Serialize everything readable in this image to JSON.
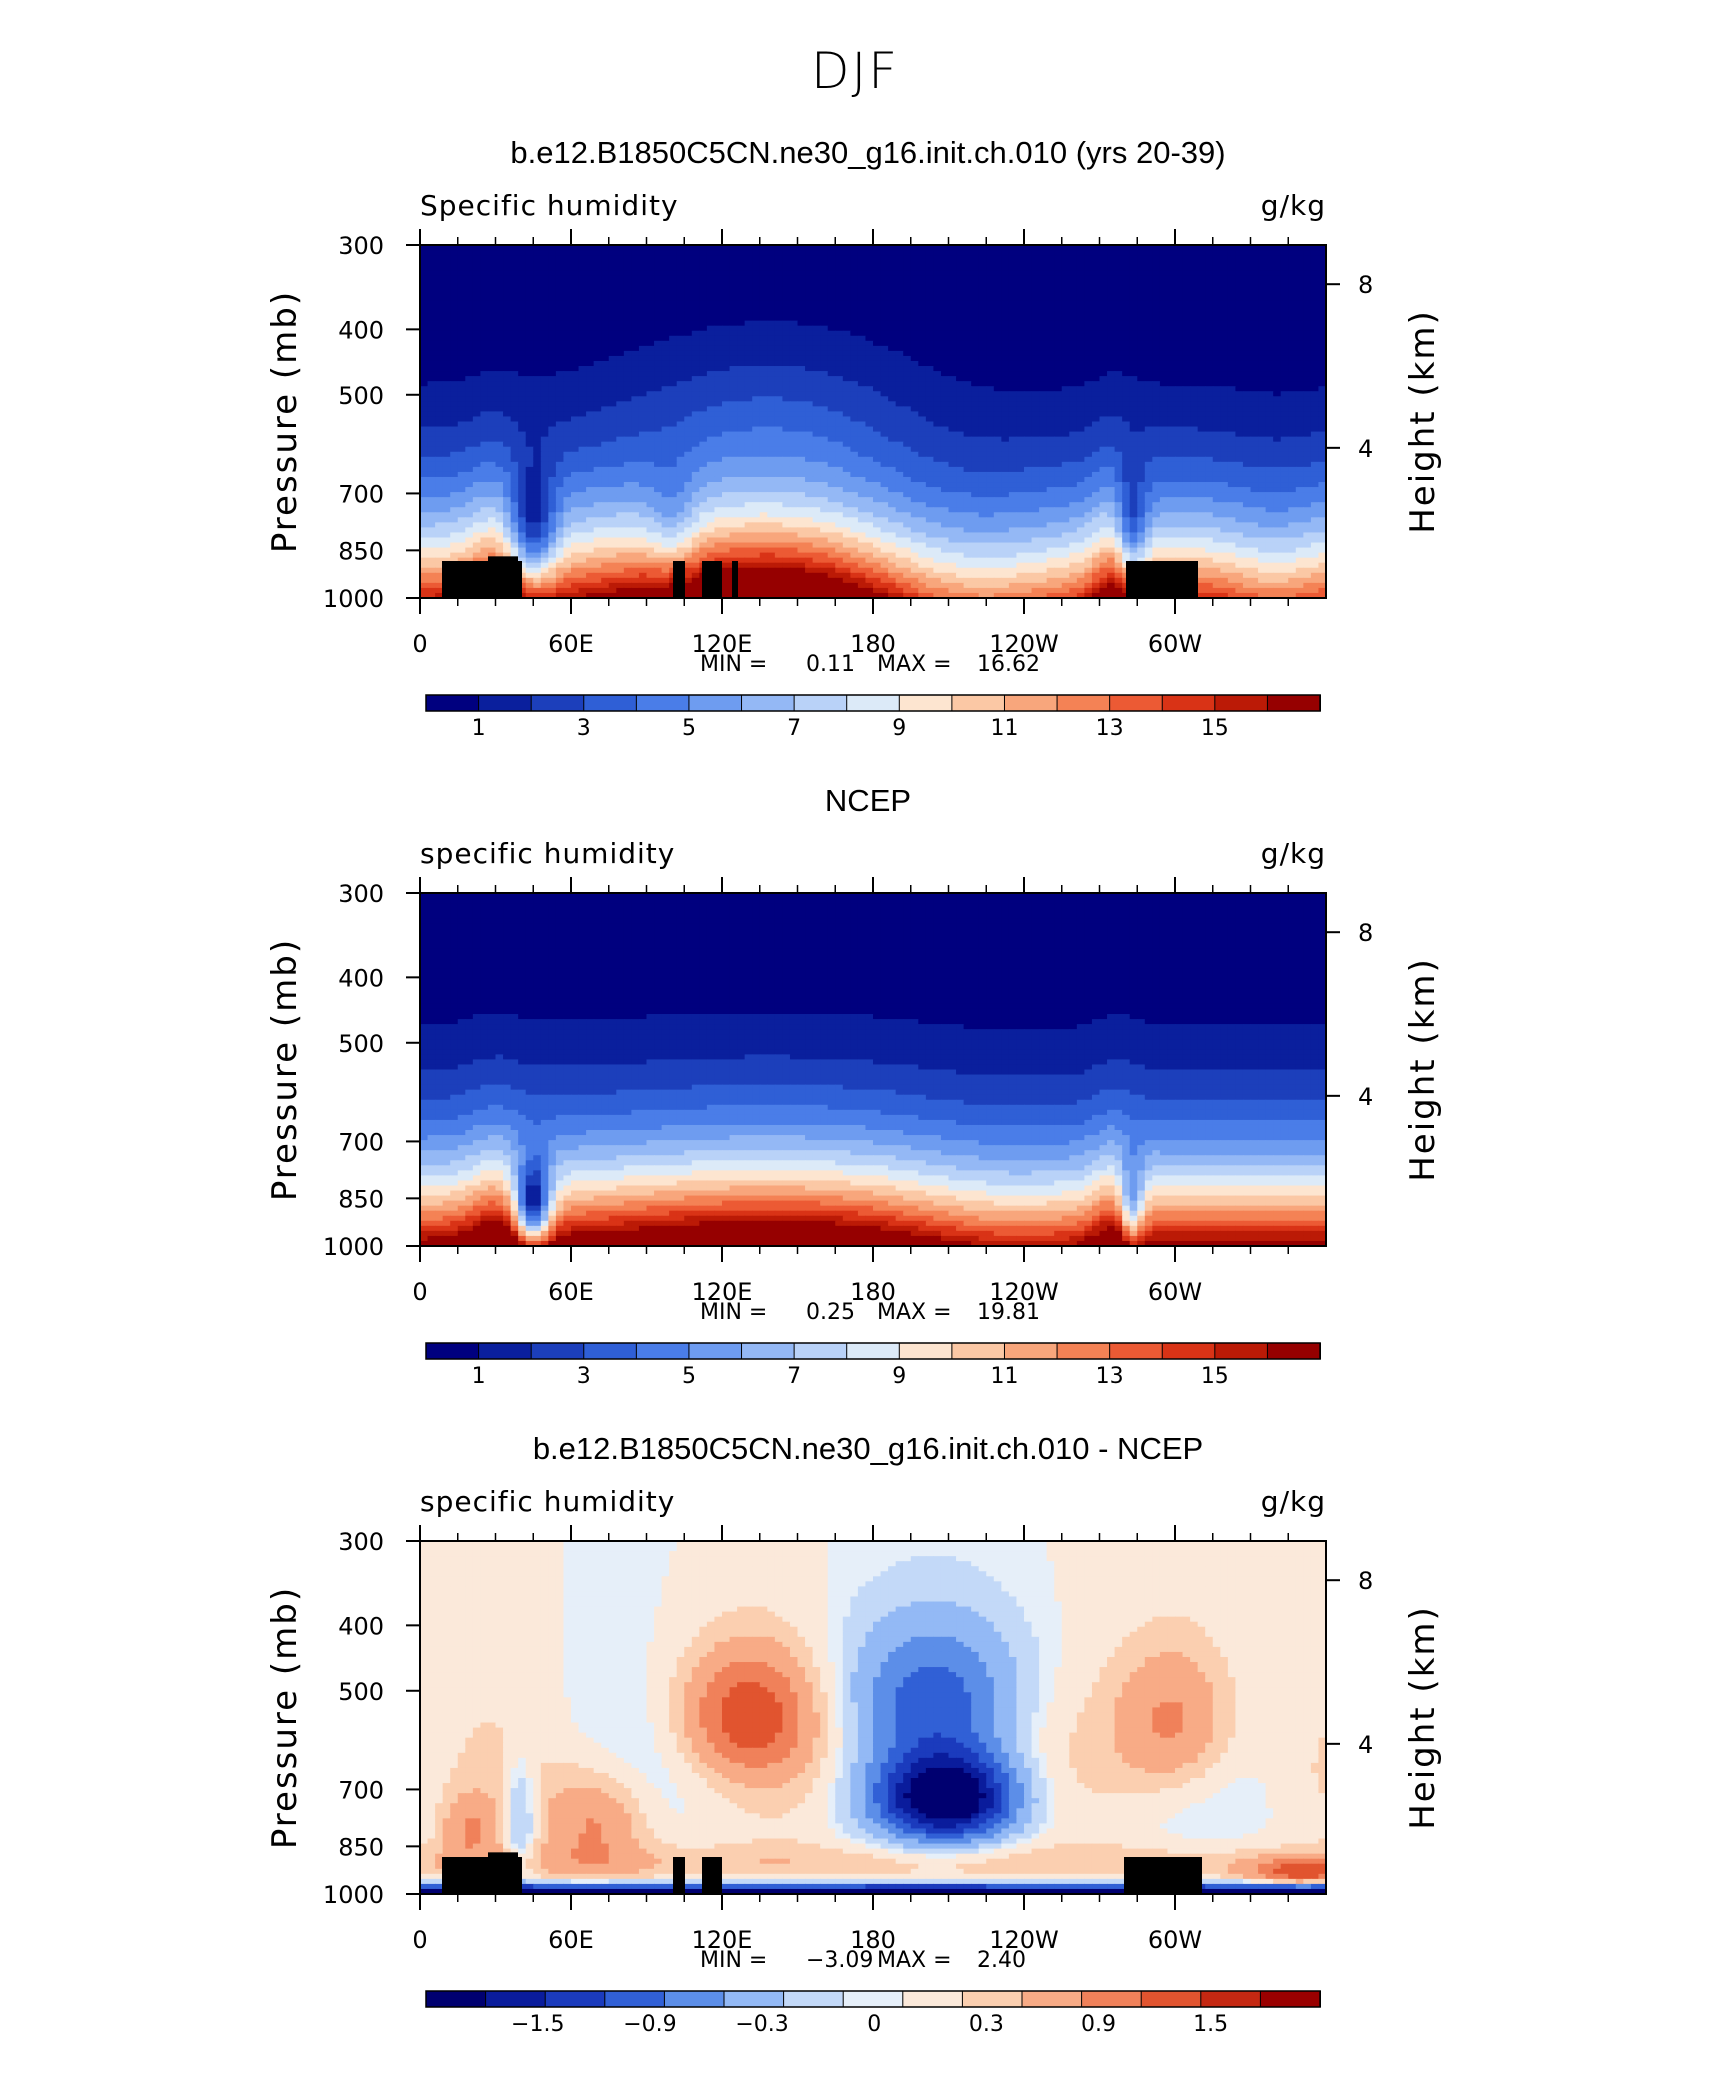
{
  "main_title": "DJF",
  "colors": {
    "seq": [
      "#00007f",
      "#0a1f9d",
      "#1c3fbb",
      "#2f5fd6",
      "#4a7de8",
      "#6e9cf0",
      "#94b8f5",
      "#b9d2f8",
      "#dceaf8",
      "#fde5d0",
      "#fbc8a5",
      "#f8a67c",
      "#f48255",
      "#ec5a34",
      "#d93316",
      "#bb1a06",
      "#960000"
    ],
    "diff": [
      "#000070",
      "#0a1c9c",
      "#1b3bbd",
      "#3160d6",
      "#5c8ee8",
      "#93b9f5",
      "#c3d9f8",
      "#e6eff9",
      "#fbe9da",
      "#fbcfb0",
      "#f8ab86",
      "#f0815a",
      "#e1542f",
      "#c52812",
      "#9a0000"
    ]
  },
  "chart_data": [
    {
      "type": "heatmap",
      "title": "b.e12.B1850C5CN.ne30_g16.init.ch.010 (yrs 20-39)",
      "left_label": "Specific humidity",
      "right_label": "g/kg",
      "ylabel": "Pressure (mb)",
      "y2label": "Height (km)",
      "x_ticks": [
        "0",
        "60E",
        "120E",
        "180",
        "120W",
        "60W"
      ],
      "y_ticks": [
        "300",
        "400",
        "500",
        "700",
        "850",
        "1000"
      ],
      "y2_ticks": [
        "8",
        "4"
      ],
      "stats": {
        "min_label": "MIN =",
        "min": "0.11",
        "max_label": "MAX =",
        "max": "16.62"
      },
      "colorbar_labels": [
        "1",
        "3",
        "5",
        "7",
        "9",
        "11",
        "13",
        "15"
      ],
      "field": "model",
      "min": 0.11,
      "max": 16.62
    },
    {
      "type": "heatmap",
      "title": "NCEP",
      "left_label": "specific humidity",
      "right_label": "g/kg",
      "ylabel": "Pressure (mb)",
      "y2label": "Height (km)",
      "x_ticks": [
        "0",
        "60E",
        "120E",
        "180",
        "120W",
        "60W"
      ],
      "y_ticks": [
        "300",
        "400",
        "500",
        "700",
        "850",
        "1000"
      ],
      "y2_ticks": [
        "8",
        "4"
      ],
      "stats": {
        "min_label": "MIN =",
        "min": "0.25",
        "max_label": "MAX =",
        "max": "19.81"
      },
      "colorbar_labels": [
        "1",
        "3",
        "5",
        "7",
        "9",
        "11",
        "13",
        "15"
      ],
      "field": "obs",
      "min": 0.25,
      "max": 19.81
    },
    {
      "type": "heatmap",
      "title": "b.e12.B1850C5CN.ne30_g16.init.ch.010 - NCEP",
      "left_label": "specific humidity",
      "right_label": "g/kg",
      "ylabel": "Pressure (mb)",
      "y2label": "Height (km)",
      "x_ticks": [
        "0",
        "60E",
        "120E",
        "180",
        "120W",
        "60W"
      ],
      "y_ticks": [
        "300",
        "400",
        "500",
        "700",
        "850",
        "1000"
      ],
      "y2_ticks": [
        "8",
        "4"
      ],
      "stats": {
        "min_label": "MIN =",
        "min": "−3.09",
        "max_label": "MAX =",
        "max": "2.40"
      },
      "colorbar_labels": [
        "−1.5",
        "−0.9",
        "−0.3",
        "0",
        "0.3",
        "0.9",
        "1.5"
      ],
      "field": "diff",
      "min": -3.09,
      "max": 2.4
    }
  ]
}
